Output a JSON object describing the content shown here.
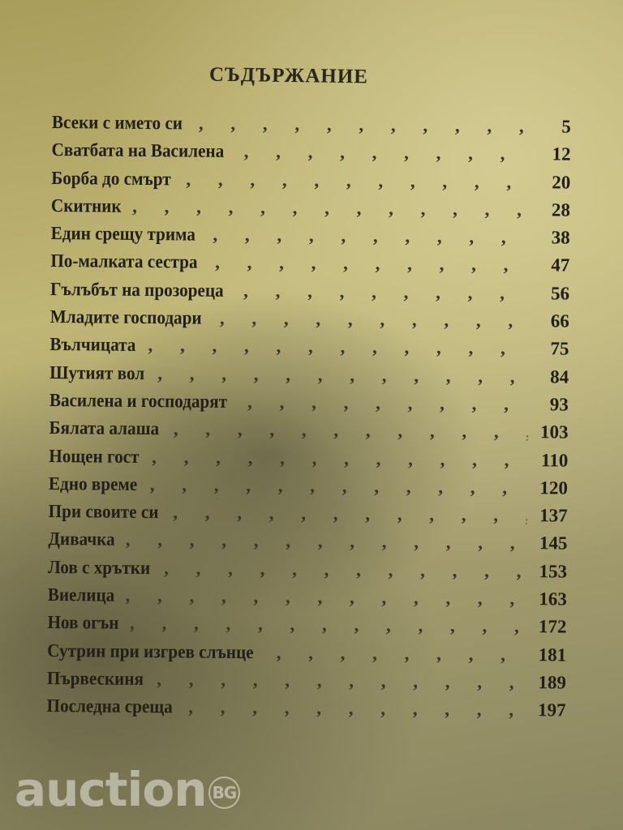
{
  "title": "СЪДЪРЖАНИЕ",
  "entries": [
    {
      "title": "Всеки с името си",
      "page": "5"
    },
    {
      "title": "Сватбата на Василена",
      "page": "12"
    },
    {
      "title": "Борба до смърт",
      "page": "20"
    },
    {
      "title": "Скитник",
      "page": "28"
    },
    {
      "title": "Един срещу трима",
      "page": "38"
    },
    {
      "title": "По-малката сестра",
      "page": "47"
    },
    {
      "title": "Гълъбът на прозореца",
      "page": "56"
    },
    {
      "title": "Младите господари",
      "page": "66"
    },
    {
      "title": "Вълчицата",
      "page": "75"
    },
    {
      "title": "Шутият вол",
      "page": "84"
    },
    {
      "title": "Василена и господарят",
      "page": "93"
    },
    {
      "title": "Бялата алаша",
      "page": "103"
    },
    {
      "title": "Нощен гост",
      "page": "110"
    },
    {
      "title": "Едно време",
      "page": "120"
    },
    {
      "title": "При своите си",
      "page": "137"
    },
    {
      "title": "Дивачка",
      "page": "145"
    },
    {
      "title": "Лов с хрътки",
      "page": "153"
    },
    {
      "title": "Виелица",
      "page": "163"
    },
    {
      "title": "Нов огън",
      "page": "172"
    },
    {
      "title": "Сутрин при изгрев слънце",
      "page": "181"
    },
    {
      "title": "Първескиня",
      "page": "189"
    },
    {
      "title": "Последна среща",
      "page": "197"
    }
  ],
  "watermark": {
    "text": "auction",
    "suffix": "BG"
  }
}
